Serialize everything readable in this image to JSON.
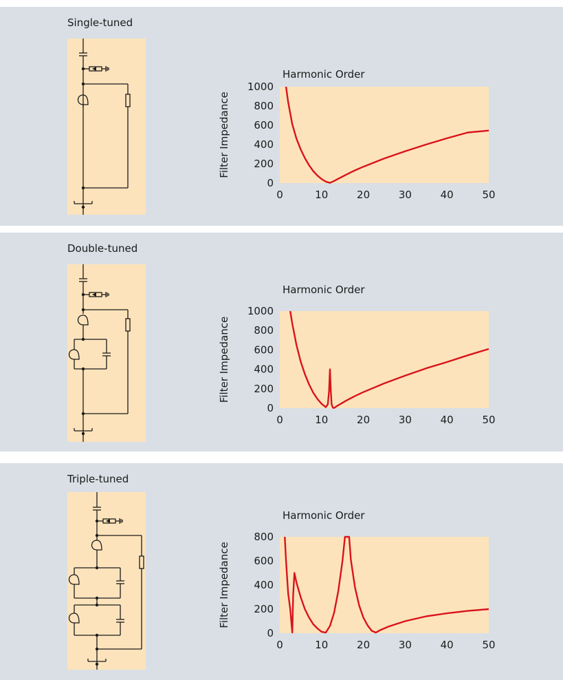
{
  "panels": [
    {
      "title": "Single-tuned"
    },
    {
      "title": "Double-tuned"
    },
    {
      "title": "Triple-tuned"
    }
  ],
  "colors": {
    "panel_background": "#d9dfe5",
    "plot_background": "#fde3bb",
    "curve": "#d9131b",
    "circuit_lines": "#1a1a1a"
  },
  "chart_data": [
    {
      "type": "line",
      "title": "",
      "xlabel": "Harmonic Order",
      "ylabel": "Filter Impedance",
      "xlim": [
        0,
        50
      ],
      "ylim": [
        0,
        1000
      ],
      "xticks": [
        0,
        10,
        20,
        30,
        40,
        50
      ],
      "yticks": [
        0,
        200,
        400,
        600,
        800,
        1000
      ],
      "grid": false,
      "series": [
        {
          "x": [
            1.5,
            2,
            3,
            4,
            5,
            6,
            7,
            8,
            9,
            10,
            11,
            12,
            13,
            14,
            16,
            18,
            20,
            25,
            30,
            35,
            40,
            45,
            50
          ],
          "y": [
            1000,
            840,
            610,
            460,
            350,
            260,
            185,
            125,
            78,
            42,
            15,
            2,
            22,
            45,
            90,
            132,
            170,
            255,
            330,
            400,
            465,
            525,
            545
          ]
        }
      ]
    },
    {
      "type": "line",
      "title": "",
      "xlabel": "Harmonic Order",
      "ylabel": "Filter Impedance",
      "xlim": [
        0,
        50
      ],
      "ylim": [
        0,
        1000
      ],
      "xticks": [
        0,
        10,
        20,
        30,
        40,
        50
      ],
      "yticks": [
        0,
        200,
        400,
        600,
        800,
        1000
      ],
      "grid": false,
      "series": [
        {
          "x": [
            2.5,
            3,
            4,
            5,
            6,
            7,
            8,
            9,
            10,
            11,
            11.5,
            11.8,
            12,
            12.2,
            12.4,
            12.7,
            13,
            14,
            16,
            18,
            20,
            25,
            30,
            35,
            40,
            45,
            50
          ],
          "y": [
            1000,
            870,
            650,
            480,
            350,
            245,
            160,
            95,
            45,
            10,
            40,
            180,
            400,
            180,
            40,
            5,
            2,
            30,
            80,
            125,
            165,
            255,
            335,
            410,
            475,
            545,
            610
          ]
        }
      ]
    },
    {
      "type": "line",
      "title": "",
      "xlabel": "Harmonic Order",
      "ylabel": "Filter Impedance",
      "xlim": [
        0,
        50
      ],
      "ylim": [
        0,
        800
      ],
      "xticks": [
        0,
        10,
        20,
        30,
        40,
        50
      ],
      "yticks": [
        0,
        200,
        400,
        600,
        800
      ],
      "grid": false,
      "series": [
        {
          "x": [
            1.2,
            1.5,
            2,
            2.5,
            3,
            3.2,
            3.5,
            4,
            5,
            6,
            7,
            8,
            9,
            10,
            11,
            12,
            13,
            14,
            15,
            15.6,
            16.6,
            17,
            18,
            19,
            20,
            21,
            22,
            23,
            24,
            26,
            30,
            35,
            40,
            45,
            50
          ],
          "y": [
            800,
            600,
            330,
            200,
            5,
            320,
            500,
            420,
            300,
            200,
            130,
            75,
            40,
            12,
            5,
            60,
            170,
            350,
            600,
            800,
            800,
            610,
            380,
            230,
            130,
            65,
            20,
            5,
            25,
            55,
            100,
            140,
            165,
            185,
            200
          ]
        }
      ]
    }
  ]
}
